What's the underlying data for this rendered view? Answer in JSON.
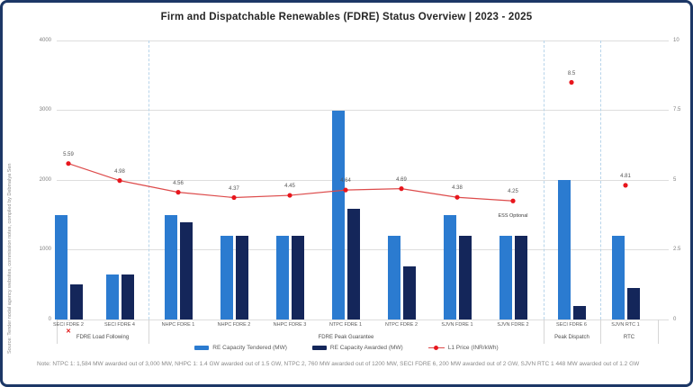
{
  "title": "Firm and Dispatchable Renewables (FDRE) Status Overview | 2023 - 2025",
  "source_note": "Source: Tender nodal agency websites, commission notes, compiled by Debmalya Sen",
  "footnote": "Note: NTPC 1: 1,584 MW awarded out of 3,000 MW, NHPC 1: 1.4 GW awarded out of 1.5 GW, NTPC 2, 760 MW awarded out of 1200 MW, SECI FDRE 6, 200 MW awarded out of 2 GW, SJVN RTC 1 448 MW awarded out of 1.2 GW",
  "chart_data": {
    "type": "combo-bar-line",
    "title": "Firm and Dispatchable Renewables (FDRE) Status Overview | 2023 - 2025",
    "categories": [
      "SECI FDRE 2",
      "SECI FDRE 4",
      "NHPC FDRE 1",
      "NHPC FDRE 2",
      "NHPC FDRE 3",
      "NTPC FDRE 1",
      "NTPC FDRE 2",
      "SJVN FDRE 1",
      "SJVN FDRE 2",
      "SECI FDRE 6",
      "SJVN RTC 1"
    ],
    "groups": [
      {
        "label": "FDRE Load Following",
        "count": 2
      },
      {
        "label": "FDRE Peak Guarantee",
        "count": 7
      },
      {
        "label": "Peak Dispatch",
        "count": 1
      },
      {
        "label": "RTC",
        "count": 1
      }
    ],
    "series": [
      {
        "name": "RE Capacity Tendered (MW)",
        "type": "bar",
        "axis": "left",
        "color": "#2b7bd0",
        "values": [
          1500,
          650,
          1500,
          1200,
          1200,
          3000,
          1200,
          1500,
          1200,
          2000,
          1200
        ]
      },
      {
        "name": "RE Capacity Awarded (MW)",
        "type": "bar",
        "axis": "left",
        "color": "#14265a",
        "values": [
          500,
          650,
          1400,
          1200,
          1200,
          1584,
          760,
          1200,
          1200,
          200,
          448
        ]
      },
      {
        "name": "L1 Price (INR/kWh)",
        "type": "line",
        "axis": "right",
        "color": "#dd4b4b",
        "marker_color": "#e8161d",
        "values": [
          5.59,
          4.98,
          4.56,
          4.37,
          4.45,
          4.64,
          4.69,
          4.38,
          4.25,
          8.5,
          4.81
        ],
        "point_labels": [
          "5.59",
          "4.98",
          "4.56",
          "4.37",
          "4.45",
          "4.64",
          "4.69",
          "4.38",
          "4.25",
          "8.5",
          "4.81"
        ],
        "line_connects_first_n": 9
      }
    ],
    "left_axis": {
      "ticks": [
        "0",
        "1000",
        "2000",
        "3000",
        "4000"
      ],
      "tick_values": [
        0,
        1000,
        2000,
        3000,
        4000
      ],
      "ylim": [
        0,
        4000
      ]
    },
    "right_axis": {
      "ticks": [
        "0",
        "2.5",
        "5",
        "7.5",
        "10"
      ],
      "tick_values": [
        0,
        2.5,
        5,
        7.5,
        10
      ],
      "ylim": [
        0,
        10
      ]
    },
    "grid": true,
    "legend_position": "bottom",
    "annotations": [
      {
        "text": "ESS Optional",
        "category_index": 8,
        "kind": "note-above-bar"
      },
      {
        "text": "✕",
        "category_index": 0,
        "kind": "cancelled-marker-below-axis"
      }
    ]
  }
}
